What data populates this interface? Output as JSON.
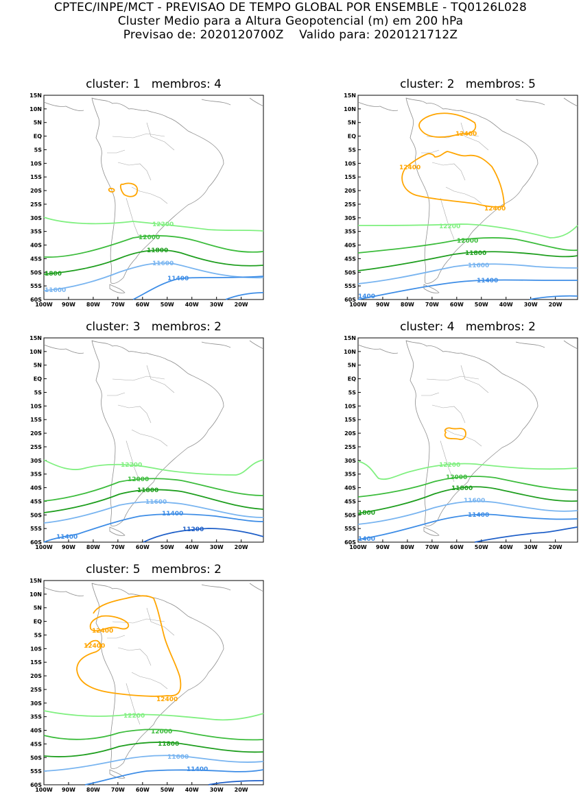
{
  "header": {
    "line1": "CPTEC/INPE/MCT - PREVISAO DE TEMPO GLOBAL POR ENSEMBLE - TQ0126L028",
    "line2": "Cluster Medio para a Altura Geopotencial (m) em 200 hPa",
    "line3": "Previsao de: 2020120700Z    Valido para: 2020121712Z"
  },
  "axes": {
    "lat_labels": [
      "15N",
      "10N",
      "5N",
      "EQ",
      "5S",
      "10S",
      "15S",
      "20S",
      "25S",
      "30S",
      "35S",
      "40S",
      "45S",
      "50S",
      "55S",
      "60S"
    ],
    "lon_labels": [
      "100W",
      "90W",
      "80W",
      "70W",
      "60W",
      "50W",
      "40W",
      "30W",
      "20W"
    ]
  },
  "colors": {
    "c12400": "#ffa500",
    "c12200": "#80f080",
    "c12000": "#3cbc3c",
    "c11800": "#1e9e1e",
    "c11600": "#78b4f0",
    "c11400": "#3c8ce6",
    "c11200": "#1e5fc8"
  },
  "panels": [
    {
      "title": "cluster: 1   membros: 4",
      "labels": {
        "l12200": "12200",
        "l12000": "12000",
        "l11800": "11800",
        "l11800b": "1800",
        "l11600": "11600",
        "l11600b": "11600",
        "l11400": "11400"
      }
    },
    {
      "title": "cluster: 2   membros: 5",
      "labels": {
        "l12400a": "12400",
        "l12400b": "12400",
        "l12400c": "12400",
        "l12200": "12200",
        "l12000": "12000",
        "l11800": "11800",
        "l11600": "11600",
        "l11400": "11400",
        "l11400b": "1400"
      }
    },
    {
      "title": "cluster: 3   membros: 2",
      "labels": {
        "l12200": "12200",
        "l12000": "12000",
        "l11800": "11800",
        "l11600": "11600",
        "l11400": "11400",
        "l11400b": "11400",
        "l11200": "11200"
      }
    },
    {
      "title": "cluster: 4   membros: 2",
      "labels": {
        "l12200": "12200",
        "l12000": "12000",
        "l11800": "11800",
        "l11800b": "1800",
        "l11600": "11600",
        "l11400": "11400",
        "l11400b": "1400"
      }
    },
    {
      "title": "cluster: 5   membros: 2",
      "labels": {
        "l12400a": "12400",
        "l12400b": "12400",
        "l12400c": "12400",
        "l12200": "12200",
        "l12000": "12000",
        "l11800": "11800",
        "l11600": "11600",
        "l11400": "11400"
      }
    }
  ]
}
